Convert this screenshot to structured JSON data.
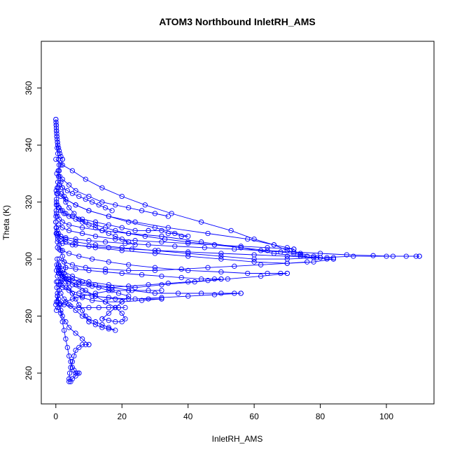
{
  "chart_data": {
    "type": "scatter",
    "title": "ATOM3 Northbound InletRH_AMS",
    "xlabel": "InletRH_AMS",
    "ylabel": "Theta (K)",
    "xlim": [
      -4.4,
      114.4
    ],
    "ylim": [
      249.2,
      376.4
    ],
    "x_ticks": [
      0,
      20,
      40,
      60,
      80,
      100
    ],
    "y_ticks": [
      260,
      280,
      300,
      320,
      340,
      360
    ],
    "grid": false,
    "legend": "none",
    "marker": "open-circle",
    "connected": true,
    "color": "#0000ff",
    "series": [
      {
        "x": [
          0,
          0.1,
          0.2,
          0.3,
          0.5,
          0.4,
          0.6,
          0.8,
          1.0,
          0.7,
          1.2,
          1.5,
          2.0,
          2.5,
          3.0,
          4.0,
          5.5,
          7.0,
          9.0,
          12.0,
          15.0,
          18.0,
          22.0,
          27.0,
          33.0,
          40.0,
          48.0,
          56.0,
          64.0,
          72.0,
          80.0,
          88.0,
          96.0,
          102.0,
          106.0,
          109.0,
          110.0
        ],
        "y": [
          349,
          347,
          345,
          343,
          341,
          339,
          337,
          335,
          333,
          331,
          329,
          327,
          325,
          322,
          320,
          318,
          316,
          314,
          313,
          312,
          311,
          310,
          309,
          308,
          307,
          306,
          305,
          304,
          303,
          302.5,
          302,
          301.5,
          301.2,
          301,
          301,
          301,
          301
        ]
      },
      {
        "x": [
          110,
          100,
          90,
          80,
          70,
          60,
          50,
          40,
          30,
          20,
          12,
          6,
          3,
          1.5,
          0.8,
          0.4,
          0.2
        ],
        "y": [
          301,
          301,
          301,
          300.5,
          300,
          300,
          301,
          302,
          303,
          304,
          305,
          306,
          307,
          308,
          309,
          310,
          311
        ]
      },
      {
        "x": [
          0.2,
          0.5,
          1,
          2,
          4,
          8,
          14,
          22,
          32,
          44,
          56,
          66,
          74,
          79,
          82,
          84
        ],
        "y": [
          316,
          315,
          314,
          313,
          312,
          311,
          310,
          309,
          308,
          306,
          304,
          302,
          301,
          300.5,
          300,
          300
        ]
      },
      {
        "x": [
          84,
          78,
          70,
          60,
          50,
          40,
          30,
          20,
          12,
          6,
          3,
          1.5,
          0.5
        ],
        "y": [
          300,
          299,
          298.5,
          299,
          300,
          301,
          302,
          303,
          304,
          305,
          306,
          307,
          308
        ]
      },
      {
        "x": [
          0.5,
          1,
          2,
          4,
          7,
          11,
          16,
          22,
          30,
          40,
          50,
          58,
          64,
          68,
          70
        ],
        "y": [
          304,
          303.5,
          303,
          302,
          301,
          300,
          299,
          298,
          297,
          296,
          295.5,
          295,
          295,
          295,
          295
        ]
      },
      {
        "x": [
          70,
          62,
          52,
          42,
          32,
          24,
          16,
          10,
          5,
          2,
          0.8
        ],
        "y": [
          295,
          294,
          293,
          292,
          291,
          290,
          291,
          292,
          294,
          296,
          298
        ]
      },
      {
        "x": [
          0.8,
          1.5,
          3,
          5,
          8,
          12,
          17,
          23,
          30,
          37,
          44,
          50,
          54,
          56
        ],
        "y": [
          296,
          295,
          294,
          293,
          292,
          291,
          290,
          289,
          288,
          288,
          288,
          288,
          288,
          288
        ]
      },
      {
        "x": [
          56,
          48,
          40,
          32,
          24,
          18,
          12,
          8,
          5,
          3,
          1.5,
          0.6
        ],
        "y": [
          288,
          287.5,
          287,
          286.5,
          286,
          286,
          287,
          289,
          291,
          293,
          295,
          297
        ]
      },
      {
        "x": [
          0.6,
          1,
          2,
          4,
          7,
          11,
          16,
          22,
          28,
          32
        ],
        "y": [
          292,
          291,
          290,
          289,
          288,
          287,
          286.5,
          286,
          286,
          286
        ]
      },
      {
        "x": [
          32,
          26,
          20,
          15,
          11,
          8,
          5,
          3,
          1.5,
          0.5
        ],
        "y": [
          286,
          285.5,
          285,
          285,
          285.5,
          286.5,
          288,
          290,
          292,
          294
        ]
      },
      {
        "x": [
          0.2,
          0.5,
          1,
          2,
          3,
          5,
          8,
          12,
          16,
          20,
          24,
          28
        ],
        "y": [
          320,
          319,
          318,
          317,
          316,
          315,
          314,
          313,
          312,
          311,
          310,
          310
        ]
      },
      {
        "x": [
          28,
          32,
          34,
          36,
          38,
          40,
          30,
          22,
          16,
          10,
          6,
          3,
          1.5,
          0.7
        ],
        "y": [
          310,
          310,
          309,
          309,
          308,
          308,
          311,
          313,
          315,
          317,
          319,
          321,
          323,
          325
        ]
      },
      {
        "x": [
          0.1,
          0.5,
          1.5,
          3,
          6,
          10,
          16,
          24,
          34,
          46,
          58,
          66,
          70,
          72
        ],
        "y": [
          324,
          323,
          322,
          321,
          319,
          317,
          315,
          313,
          311,
          309,
          307,
          305,
          304,
          303.5
        ]
      },
      {
        "x": [
          72,
          64,
          56,
          48,
          40,
          32,
          24,
          18,
          12,
          8,
          4,
          2,
          0.8
        ],
        "y": [
          303.5,
          304,
          304.5,
          305,
          305.5,
          306,
          306.5,
          307,
          308,
          309,
          310,
          311,
          312
        ]
      },
      {
        "x": [
          0.3,
          0.8,
          2,
          4,
          6,
          10,
          14,
          18,
          22,
          26,
          30,
          34
        ],
        "y": [
          330,
          329,
          328,
          326,
          324,
          322,
          320,
          319,
          318,
          317,
          316,
          315
        ]
      },
      {
        "x": [
          0,
          2,
          5,
          9,
          14,
          20,
          27,
          35,
          44,
          53,
          60,
          66,
          70,
          74,
          78,
          80
        ],
        "y": [
          335,
          333,
          331,
          328,
          325,
          322,
          319,
          316,
          313,
          310,
          307,
          305,
          303,
          302,
          301,
          300.5
        ]
      },
      {
        "x": [
          0.4,
          0.8,
          1.2,
          2,
          3,
          4,
          5,
          6,
          7,
          8,
          9,
          10
        ],
        "y": [
          300,
          298,
          296,
          294,
          292,
          290,
          288,
          286,
          284,
          282,
          280,
          278
        ]
      },
      {
        "x": [
          10,
          12,
          14,
          16,
          18,
          16,
          14,
          12,
          10,
          8,
          6,
          4,
          2.5,
          1.5
        ],
        "y": [
          278,
          277,
          276,
          275.5,
          275,
          276,
          277,
          278,
          279,
          280,
          282,
          284,
          286,
          288
        ]
      },
      {
        "x": [
          0.5,
          1,
          1.5,
          2,
          2.5,
          3,
          3.5,
          4,
          4.5,
          5,
          5.5,
          6,
          6.5,
          7
        ],
        "y": [
          287,
          284,
          281,
          278,
          275,
          272,
          269,
          266,
          264,
          262,
          261,
          260,
          260,
          260
        ]
      },
      {
        "x": [
          7,
          6,
          5,
          4.5,
          4,
          4,
          4.2,
          4.5,
          5,
          5.5,
          6,
          7,
          8,
          9,
          10
        ],
        "y": [
          260,
          259,
          258,
          257,
          257,
          258,
          260,
          262,
          264,
          266,
          268,
          269,
          270,
          270,
          270
        ]
      },
      {
        "x": [
          10,
          8,
          6,
          4,
          3,
          2,
          1.5,
          1,
          0.8,
          0.5,
          0.3,
          0.2
        ],
        "y": [
          270,
          272,
          274,
          276,
          278,
          280,
          282,
          284,
          286,
          288,
          290,
          292
        ]
      },
      {
        "x": [
          0.2,
          1,
          2,
          4,
          7,
          10,
          13,
          16,
          19,
          22,
          20,
          18,
          16,
          14
        ],
        "y": [
          296,
          295,
          294,
          293,
          292,
          291,
          290,
          289,
          288,
          287,
          285,
          283,
          281,
          279
        ]
      },
      {
        "x": [
          14,
          16,
          18,
          20,
          21,
          20,
          18,
          15,
          12,
          9,
          6,
          3,
          1.5
        ],
        "y": [
          279,
          278.5,
          278,
          278,
          279,
          281,
          283,
          285,
          287,
          289,
          291,
          293,
          295
        ]
      },
      {
        "x": [
          0.3,
          1,
          3,
          6,
          10,
          15,
          20,
          26,
          32,
          38,
          44,
          48,
          50
        ],
        "y": [
          298,
          297.5,
          297,
          296.5,
          296,
          295.5,
          295,
          294.5,
          294,
          293.5,
          293,
          293,
          293
        ]
      },
      {
        "x": [
          50,
          46,
          40,
          34,
          28,
          22,
          16,
          11,
          7,
          4,
          2,
          0.8
        ],
        "y": [
          293,
          292.5,
          292,
          291.5,
          291,
          290.5,
          290,
          290.5,
          291,
          292,
          293,
          295
        ]
      },
      {
        "x": [
          0.1,
          0.5,
          1.5,
          3,
          6,
          10,
          15,
          21,
          28,
          36,
          45,
          54,
          62,
          68,
          72,
          74,
          76
        ],
        "y": [
          309,
          308.5,
          308,
          307.5,
          307,
          306.5,
          306,
          305.5,
          305,
          304.5,
          304,
          303.5,
          303,
          302.5,
          302,
          301.5,
          301
        ]
      },
      {
        "x": [
          76,
          70,
          62,
          54,
          46,
          38,
          30,
          22,
          15,
          9,
          5,
          2.5,
          1
        ],
        "y": [
          299,
          298.5,
          298,
          297.5,
          297,
          296.5,
          296,
          296,
          296.5,
          297,
          298,
          299,
          300
        ]
      },
      {
        "x": [
          0.6,
          1.2,
          2.5,
          4.5,
          7,
          10,
          13,
          16,
          19,
          21
        ],
        "y": [
          285,
          284.5,
          284,
          283.5,
          283,
          283,
          283,
          283,
          283,
          283
        ]
      },
      {
        "x": [
          0,
          0.05,
          0.1,
          0.15,
          0.2,
          0.25,
          0.3,
          0.4,
          0.5,
          0.6,
          0.8,
          1.0,
          1.2,
          1.5,
          2.0
        ],
        "y": [
          349,
          348,
          347,
          346,
          345,
          344,
          343,
          342,
          341,
          340,
          339,
          338,
          337,
          336,
          335
        ]
      },
      {
        "x": [
          2.0,
          1.5,
          1.0,
          0.8,
          0.6,
          0.4,
          0.3,
          0.2,
          0.15,
          0.1,
          0.05,
          0
        ],
        "y": [
          335,
          333,
          331,
          329,
          327,
          325,
          323,
          321,
          319,
          317,
          315,
          313
        ]
      },
      {
        "x": [
          0,
          0.1,
          0.3,
          0.6,
          1.0,
          1.5,
          2.0,
          2.5,
          3.0,
          2.5,
          2.0,
          1.5,
          1.0,
          0.5,
          0.2,
          0
        ],
        "y": [
          313,
          311,
          309,
          307,
          305,
          303,
          301,
          299,
          297,
          295,
          293,
          291,
          289,
          287,
          285,
          284
        ]
      },
      {
        "x": [
          0.2,
          0.6,
          1.5,
          3,
          5,
          8,
          12,
          17,
          22,
          28,
          32
        ],
        "y": [
          282,
          283,
          284,
          285,
          286,
          287,
          288,
          289,
          289,
          289,
          289
        ]
      },
      {
        "x": [
          0.5,
          2,
          5,
          10,
          16,
          23,
          31,
          40,
          50,
          60,
          70,
          78,
          82,
          84
        ],
        "y": [
          306,
          305.5,
          305,
          304.5,
          304,
          303.5,
          303,
          302.5,
          302,
          301.5,
          301,
          300.5,
          300.5,
          300.5
        ]
      },
      {
        "x": [
          1,
          2,
          3.5,
          5,
          7,
          9,
          11,
          13,
          15,
          17
        ],
        "y": [
          326,
          325,
          324,
          323,
          322,
          321,
          320,
          319,
          318,
          317
        ]
      },
      {
        "x": [
          0.8,
          1.5,
          2.5,
          4,
          6,
          8,
          10,
          12,
          14,
          16,
          18,
          20,
          22,
          24
        ],
        "y": [
          318,
          317,
          316,
          315,
          314,
          313,
          312,
          311,
          310,
          309,
          308,
          307,
          306,
          305
        ]
      }
    ]
  }
}
